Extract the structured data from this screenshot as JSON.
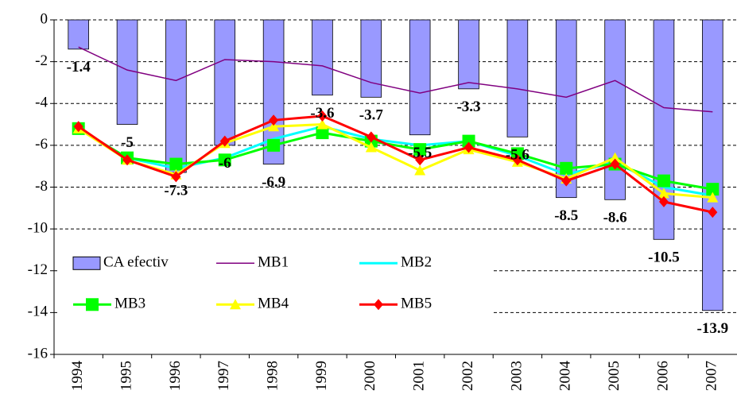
{
  "chart_data": {
    "type": "bar-line",
    "categories": [
      "1994",
      "1995",
      "1996",
      "1997",
      "1998",
      "1999",
      "2000",
      "2001",
      "2002",
      "2003",
      "2004",
      "2005",
      "2006",
      "2007"
    ],
    "ylim": [
      -16,
      0
    ],
    "yticks": [
      -16,
      -14,
      -12,
      -10,
      -8,
      -6,
      -4,
      -2,
      0
    ],
    "grid": true,
    "legend": "lower left",
    "series": [
      {
        "name": "CA efectiv",
        "type": "bar",
        "color": "#9999ff",
        "values": [
          -1.4,
          -5.0,
          -7.3,
          -6.0,
          -6.9,
          -3.6,
          -3.7,
          -5.5,
          -3.3,
          -5.6,
          -8.5,
          -8.6,
          -10.5,
          -13.9
        ],
        "labels": true
      },
      {
        "name": "MB1",
        "type": "line",
        "color": "#800080",
        "marker": "none",
        "values": [
          -1.3,
          -2.4,
          -2.9,
          -1.9,
          -2.0,
          -2.2,
          -3.0,
          -3.5,
          -3.0,
          -3.3,
          -3.7,
          -2.9,
          -4.2,
          -4.4
        ]
      },
      {
        "name": "MB2",
        "type": "line",
        "color": "#00ffff",
        "marker": "none",
        "values": [
          -5.2,
          -6.6,
          -7.1,
          -6.6,
          -5.7,
          -5.1,
          -5.7,
          -6.0,
          -5.8,
          -6.5,
          -7.4,
          -6.8,
          -8.0,
          -8.4
        ]
      },
      {
        "name": "MB3",
        "type": "line",
        "color": "#00ff00",
        "marker": "square",
        "values": [
          -5.2,
          -6.6,
          -6.9,
          -6.7,
          -6.0,
          -5.4,
          -5.8,
          -6.2,
          -5.8,
          -6.4,
          -7.1,
          -6.9,
          -7.7,
          -8.1
        ]
      },
      {
        "name": "MB4",
        "type": "line",
        "color": "#ffff00",
        "marker": "triangle",
        "values": [
          -5.2,
          -6.7,
          -7.4,
          -5.9,
          -5.1,
          -5.0,
          -6.1,
          -7.2,
          -6.2,
          -6.8,
          -7.6,
          -6.6,
          -8.3,
          -8.5
        ]
      },
      {
        "name": "MB5",
        "type": "line",
        "color": "#ff0000",
        "marker": "diamond",
        "values": [
          -5.1,
          -6.7,
          -7.5,
          -5.8,
          -4.8,
          -4.6,
          -5.6,
          -6.7,
          -6.1,
          -6.7,
          -7.7,
          -6.9,
          -8.7,
          -9.2
        ]
      }
    ]
  }
}
